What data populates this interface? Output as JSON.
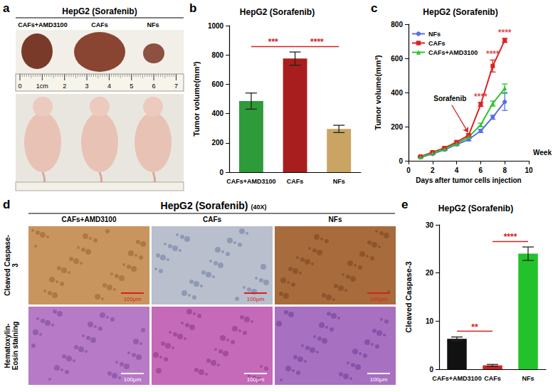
{
  "figure": {
    "a": {
      "panel": "a",
      "title": "HepG2 (Sorafenib)",
      "groups": [
        "CAFs+AMD3100",
        "CAFs",
        "NFs"
      ],
      "ruler": [
        "0",
        "1cm",
        "2",
        "3",
        "4",
        "5",
        "6",
        "7"
      ]
    },
    "d": {
      "panel": "d",
      "title": "HepG2 (Sorafenib)",
      "magnification": "(40X)",
      "columns": [
        "CAFs+AMD3100",
        "CAFs",
        "NFs"
      ],
      "rows": [
        "Cleaved Caspase-3",
        "Hematoxylin-Eosin staining"
      ],
      "scale_bar": "100μm"
    }
  },
  "chart_data": [
    {
      "panel": "b",
      "type": "bar",
      "title": "HepG2 (Sorafenib)",
      "y_label": "Tumor volume(mm³)",
      "categories": [
        "CAFs+AMD3100",
        "CAFs",
        "NFs"
      ],
      "values": [
        485,
        775,
        295
      ],
      "errors": [
        55,
        45,
        25
      ],
      "colors": [
        "#2e9b3a",
        "#a81e1e",
        "#c9a463"
      ],
      "ylim": [
        0,
        1000
      ],
      "yticks": [
        0,
        200,
        400,
        600,
        800,
        1000
      ],
      "grid": false,
      "significance": [
        {
          "from": "CAFs+AMD3100",
          "to": "CAFs",
          "text": "***",
          "color": "#d62020"
        },
        {
          "from": "CAFs",
          "to": "NFs",
          "text": "****",
          "color": "#d62020"
        }
      ]
    },
    {
      "panel": "c",
      "type": "line",
      "title": "HepG2 (Sorafenib)",
      "x_label": "Days after tumor cells injection",
      "x_unit": "Week",
      "y_label": "Tumor volume(mm³)",
      "x": [
        1,
        2,
        3,
        4,
        5,
        6,
        7,
        8
      ],
      "series": [
        {
          "name": "NFs",
          "color": "#5a6fe0",
          "marker": "circle",
          "values": [
            20,
            40,
            65,
            95,
            125,
            175,
            255,
            345
          ],
          "errors": [
            3,
            4,
            5,
            6,
            8,
            10,
            12,
            50
          ]
        },
        {
          "name": "CAFs",
          "color": "#e02020",
          "marker": "rect",
          "values": [
            25,
            50,
            75,
            110,
            150,
            330,
            555,
            705
          ],
          "errors": [
            3,
            4,
            5,
            6,
            8,
            12,
            35,
            12
          ]
        },
        {
          "name": "CAFs+AMD3100",
          "color": "#2ec22e",
          "marker": "triangle",
          "values": [
            22,
            45,
            70,
            100,
            140,
            210,
            335,
            425
          ],
          "errors": [
            3,
            4,
            5,
            6,
            8,
            10,
            15,
            25
          ]
        }
      ],
      "xlim": [
        0,
        10
      ],
      "xticks": [
        0,
        2,
        4,
        6,
        8,
        10
      ],
      "ylim": [
        0,
        800
      ],
      "yticks": [
        0,
        200,
        400,
        600,
        800
      ],
      "grid": false,
      "legend": "upper left",
      "annotations": [
        {
          "text": "Sorafenib",
          "x": 5,
          "series": "CAFs",
          "color": "#d62020"
        }
      ],
      "significance": [
        {
          "text": "****",
          "x": 6,
          "series": "CAFs",
          "color": "#d62020"
        },
        {
          "text": "****",
          "x": 7,
          "series": "CAFs",
          "color": "#d62020"
        },
        {
          "text": "****",
          "x": 8,
          "series": "CAFs",
          "color": "#d62020"
        }
      ]
    },
    {
      "panel": "e",
      "type": "bar",
      "title": "HepG2 (Sorafenib)",
      "y_label": "Cleaved Caspase-3",
      "categories": [
        "CAFs+AMD3100",
        "CAFs",
        "NFs"
      ],
      "values": [
        6.3,
        0.8,
        24
      ],
      "errors": [
        0.4,
        0.2,
        1.4
      ],
      "colors": [
        "#111111",
        "#d62020",
        "#22c22a"
      ],
      "ylim": [
        0,
        30
      ],
      "yticks": [
        0,
        10,
        20,
        30
      ],
      "grid": false,
      "significance": [
        {
          "from": "CAFs+AMD3100",
          "to": "CAFs",
          "text": "**",
          "color": "#d62020"
        },
        {
          "from": "CAFs",
          "to": "NFs",
          "text": "****",
          "color": "#d62020"
        }
      ]
    }
  ]
}
